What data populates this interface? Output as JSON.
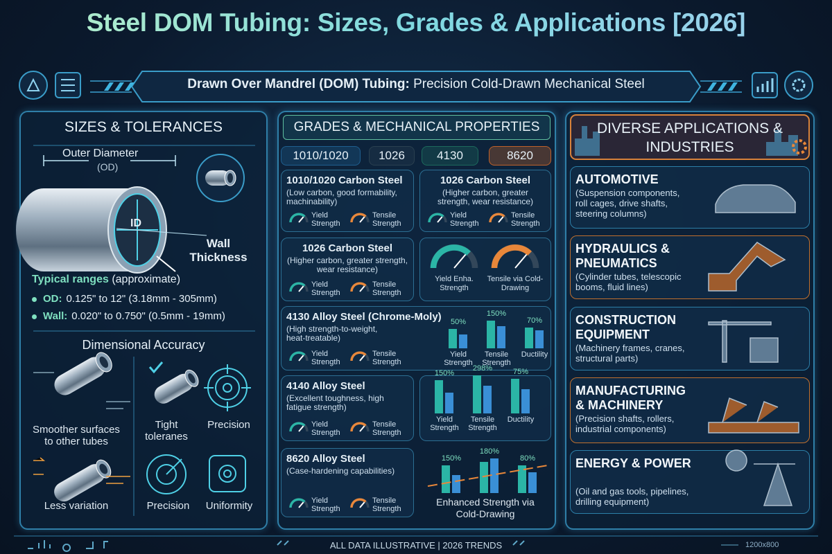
{
  "header": {
    "title": "Steel DOM Tubing: Sizes, Grades & Applications [2026]",
    "banner_bold": "Drawn Over Mandrel (DOM) Tubing:",
    "banner_text": "Precision Cold-Drawn Mechanical Steel"
  },
  "sizes": {
    "heading": "SIZES & TOLERANCES",
    "od_label": "Outer Diameter",
    "od_abbr": "(OD)",
    "id_label": "ID",
    "wall_label": "Wall Thickness",
    "ranges_title": "Typical ranges",
    "ranges_note": "(approximate)",
    "ranges": [
      {
        "label": "OD:",
        "text": "0.125\" to 12\" (3.18mm - 305mm)"
      },
      {
        "label": "Wall:",
        "text": "0.020\" to 0.750\" (0.5mm - 19mm)"
      }
    ],
    "accuracy_heading": "Dimensional Accuracy",
    "accuracy_items": [
      "Smoother surfaces to other tubes",
      "Tight toleranes",
      "Precision",
      "Less variation",
      "Precision",
      "Uniformity"
    ]
  },
  "grades": {
    "heading": "GRADES & MECHANICAL PROPERTIES",
    "tabs": [
      "1010/1020",
      "1026",
      "4130",
      "8620"
    ],
    "cards": [
      {
        "title": "1010/1020 Carbon Steel",
        "desc": "(Low carbon, good formability, machinability)",
        "gauges": [
          "Yield Strength",
          "Tensile Strength"
        ]
      },
      {
        "title": "1026 Carbon Steel",
        "desc": "(Higher carbon, greater strength, wear resistance)",
        "gauges": [
          "Yield Strength",
          "Tensile Strength"
        ]
      },
      {
        "title": "1026 Carbon Steel",
        "desc": "(Higher carbon, greater strength, wear resistance)",
        "gauges": [
          "Yield Strength",
          "Tensile Strength"
        ]
      },
      {
        "gauges": [
          "Yield Enha. Strength",
          "Tensile via Cold-Drawing"
        ]
      },
      {
        "title": "4130 Alloy Steel (Chrome-Moly)",
        "desc": "(High strength-to-weight, heat-treatable)",
        "gauges": [
          "Yield Strength",
          "Tensile Strength"
        ],
        "chart": {
          "labels": [
            "50%",
            "150%",
            "70%"
          ],
          "categories": [
            "Yield Strength",
            "Tensile Strength",
            "Ductility"
          ]
        }
      },
      {
        "title": "4140 Alloy Steel",
        "desc": "(Excellent toughness, high fatigue strength)",
        "gauges": [
          "Yield Strength",
          "Tensile Strength"
        ],
        "chart": {
          "labels": [
            "150%",
            "298%",
            "75%"
          ],
          "categories": [
            "Yield Strength",
            "Tensile Strength",
            "Ductility"
          ]
        }
      },
      {
        "title": "8620 Alloy Steel",
        "desc": "(Case-hardening capabilities)",
        "gauges": [
          "Yield Strength",
          "Tensile Strength"
        ],
        "chart": {
          "labels": [
            "150%",
            "180%",
            "80%"
          ],
          "caption": "Enhanced Strength via Cold-Drawing"
        }
      }
    ]
  },
  "applications": {
    "heading": "DIVERSE APPLICATIONS & INDUSTRIES",
    "items": [
      {
        "title": "AUTOMOTIVE",
        "desc": "(Suspension components, roll cages, drive shafts, steering columns)"
      },
      {
        "title": "HYDRAULICS & PNEUMATICS",
        "desc": "(Cylinder tubes, telescopic booms, fluid lines)"
      },
      {
        "title": "CONSTRUCTION EQUIPMENT",
        "desc": "(Machinery frames, cranes, structural parts)"
      },
      {
        "title": "MANUFACTURING & MACHINERY",
        "desc": "(Precision shafts, rollers, industrial components)"
      },
      {
        "title": "ENERGY & POWER",
        "desc": "(Oil and gas tools, pipelines, drilling equipment)"
      }
    ]
  },
  "footer": {
    "note": "ALL DATA ILLUSTRATIVE | 2026 TRENDS",
    "size": "1200x800"
  }
}
